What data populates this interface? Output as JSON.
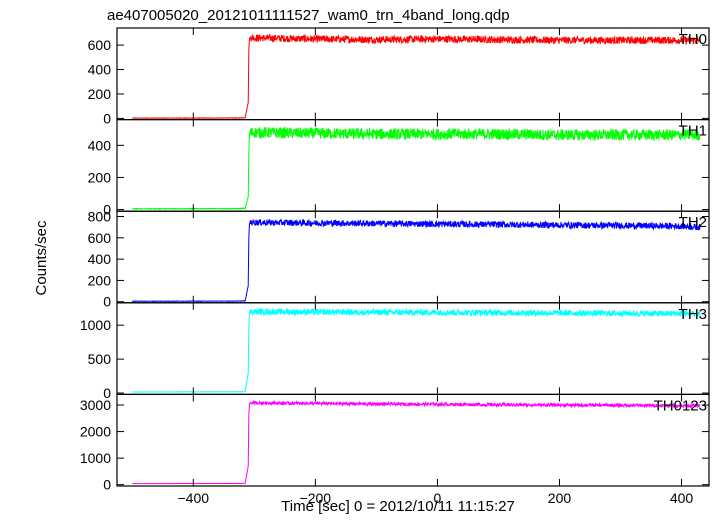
{
  "chart_data": {
    "type": "line",
    "title": "ae407005020_20121011111527_wam0_trn_4band_long.qdp",
    "xlabel": "Time [sec] 0 = 2012/10/11 11:15:27",
    "ylabel": "Counts/sec",
    "xlim": [
      -525,
      445
    ],
    "x_ticks": [
      -400,
      -200,
      0,
      200,
      400
    ],
    "grid": false,
    "panels": [
      {
        "name": "TH0",
        "color": "#ff0000",
        "ylim": [
          -10,
          740
        ],
        "y_ticks": [
          0,
          200,
          400,
          600
        ],
        "x": [
          -500,
          -330,
          -315,
          -310,
          -309,
          -308,
          -307,
          -200,
          -100,
          0,
          100,
          200,
          300,
          400,
          430
        ],
        "y": [
          2,
          3,
          5,
          130,
          560,
          655,
          660,
          650,
          645,
          650,
          645,
          640,
          640,
          640,
          640
        ],
        "noise": 30
      },
      {
        "name": "TH1",
        "color": "#00ff00",
        "ylim": [
          -10,
          560
        ],
        "y_ticks": [
          0,
          200,
          400
        ],
        "x": [
          -500,
          -330,
          -315,
          -310,
          -309,
          -308,
          -307,
          -200,
          -100,
          0,
          100,
          200,
          300,
          400,
          430
        ],
        "y": [
          5,
          6,
          8,
          80,
          340,
          470,
          480,
          475,
          470,
          470,
          470,
          465,
          465,
          465,
          465
        ],
        "noise": 35
      },
      {
        "name": "TH2",
        "color": "#0000ff",
        "ylim": [
          -10,
          850
        ],
        "y_ticks": [
          0,
          200,
          400,
          600,
          800
        ],
        "x": [
          -500,
          -330,
          -315,
          -310,
          -309,
          -308,
          -307,
          -200,
          -100,
          0,
          100,
          200,
          300,
          400,
          430
        ],
        "y": [
          5,
          6,
          8,
          150,
          600,
          730,
          745,
          740,
          735,
          730,
          725,
          720,
          715,
          710,
          700
        ],
        "noise": 30
      },
      {
        "name": "TH3",
        "color": "#00ffff",
        "ylim": [
          -20,
          1330
        ],
        "y_ticks": [
          0,
          500,
          1000
        ],
        "x": [
          -500,
          -330,
          -315,
          -310,
          -309,
          -308,
          -307,
          -200,
          -100,
          0,
          100,
          200,
          300,
          400,
          430
        ],
        "y": [
          15,
          18,
          20,
          300,
          950,
          1180,
          1200,
          1195,
          1190,
          1190,
          1185,
          1180,
          1175,
          1170,
          1170
        ],
        "noise": 45
      },
      {
        "name": "TH0123",
        "color": "#ff00ff",
        "ylim": [
          -50,
          3400
        ],
        "y_ticks": [
          0,
          1000,
          2000,
          3000
        ],
        "x": [
          -500,
          -330,
          -315,
          -310,
          -309,
          -308,
          -307,
          -200,
          -100,
          0,
          100,
          200,
          300,
          400,
          430
        ],
        "y": [
          40,
          45,
          50,
          700,
          2600,
          3050,
          3080,
          3060,
          3040,
          3030,
          3010,
          3000,
          2990,
          2980,
          2980
        ],
        "noise": 60
      }
    ]
  }
}
